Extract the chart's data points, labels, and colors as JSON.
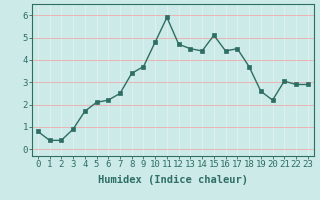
{
  "x": [
    0,
    1,
    2,
    3,
    4,
    5,
    6,
    7,
    8,
    9,
    10,
    11,
    12,
    13,
    14,
    15,
    16,
    17,
    18,
    19,
    20,
    21,
    22,
    23
  ],
  "y": [
    0.8,
    0.4,
    0.4,
    0.9,
    1.7,
    2.1,
    2.2,
    2.5,
    3.4,
    3.7,
    4.8,
    5.9,
    4.7,
    4.5,
    4.4,
    5.1,
    4.4,
    4.5,
    3.7,
    2.6,
    2.2,
    3.05,
    2.9,
    2.9
  ],
  "line_color": "#2e6e63",
  "marker": "s",
  "marker_size": 2.5,
  "bg_color": "#cceae7",
  "grid_color_h": "#e8b4b4",
  "grid_color_v": "#dff0ee",
  "xlabel": "Humidex (Indice chaleur)",
  "xlabel_fontsize": 7.5,
  "tick_fontsize": 6.5,
  "xlim": [
    -0.5,
    23.5
  ],
  "ylim": [
    -0.3,
    6.5
  ],
  "yticks": [
    0,
    1,
    2,
    3,
    4,
    5,
    6
  ],
  "xticks": [
    0,
    1,
    2,
    3,
    4,
    5,
    6,
    7,
    8,
    9,
    10,
    11,
    12,
    13,
    14,
    15,
    16,
    17,
    18,
    19,
    20,
    21,
    22,
    23
  ]
}
